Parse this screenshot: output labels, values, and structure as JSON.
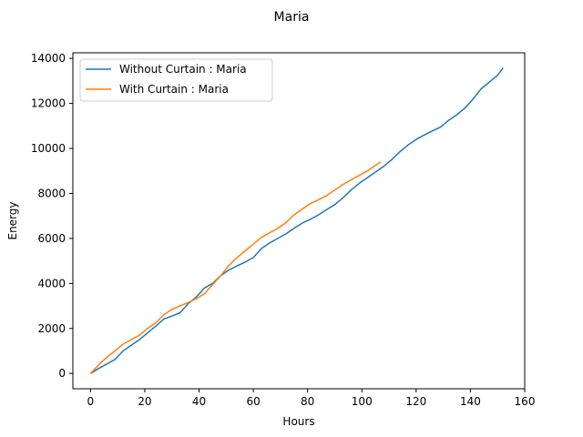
{
  "chart_data": {
    "type": "line",
    "title": "Maria",
    "xlabel": "Hours",
    "ylabel": "Energy",
    "xlim": [
      -6.5,
      160
    ],
    "ylim": [
      -680,
      14250
    ],
    "xticks": [
      0,
      20,
      40,
      60,
      80,
      100,
      120,
      140,
      160
    ],
    "yticks": [
      0,
      2000,
      4000,
      6000,
      8000,
      10000,
      12000,
      14000
    ],
    "grid": false,
    "legend_position": "upper-left",
    "series": [
      {
        "name": "Without Curtain : Maria",
        "color": "#1f77b4",
        "points": [
          [
            0,
            0
          ],
          [
            3,
            220
          ],
          [
            6,
            420
          ],
          [
            9,
            620
          ],
          [
            12,
            1000
          ],
          [
            15,
            1250
          ],
          [
            18,
            1500
          ],
          [
            21,
            1800
          ],
          [
            24,
            2100
          ],
          [
            27,
            2420
          ],
          [
            30,
            2550
          ],
          [
            33,
            2700
          ],
          [
            36,
            3100
          ],
          [
            39,
            3400
          ],
          [
            42,
            3800
          ],
          [
            45,
            4000
          ],
          [
            48,
            4350
          ],
          [
            51,
            4600
          ],
          [
            54,
            4780
          ],
          [
            57,
            4950
          ],
          [
            60,
            5150
          ],
          [
            63,
            5550
          ],
          [
            66,
            5800
          ],
          [
            69,
            6000
          ],
          [
            72,
            6200
          ],
          [
            75,
            6450
          ],
          [
            78,
            6680
          ],
          [
            81,
            6850
          ],
          [
            84,
            7050
          ],
          [
            87,
            7280
          ],
          [
            90,
            7500
          ],
          [
            93,
            7800
          ],
          [
            96,
            8150
          ],
          [
            99,
            8450
          ],
          [
            102,
            8700
          ],
          [
            105,
            8950
          ],
          [
            108,
            9200
          ],
          [
            111,
            9500
          ],
          [
            114,
            9850
          ],
          [
            117,
            10150
          ],
          [
            120,
            10400
          ],
          [
            123,
            10600
          ],
          [
            126,
            10780
          ],
          [
            129,
            10950
          ],
          [
            132,
            11250
          ],
          [
            135,
            11500
          ],
          [
            138,
            11800
          ],
          [
            141,
            12200
          ],
          [
            144,
            12650
          ],
          [
            147,
            12950
          ],
          [
            150,
            13250
          ],
          [
            152,
            13580
          ]
        ]
      },
      {
        "name": "With Curtain : Maria",
        "color": "#ff7f0e",
        "points": [
          [
            0,
            0
          ],
          [
            3,
            380
          ],
          [
            6,
            720
          ],
          [
            9,
            1000
          ],
          [
            12,
            1300
          ],
          [
            15,
            1500
          ],
          [
            18,
            1700
          ],
          [
            21,
            2000
          ],
          [
            24,
            2250
          ],
          [
            27,
            2600
          ],
          [
            30,
            2850
          ],
          [
            33,
            3000
          ],
          [
            36,
            3150
          ],
          [
            39,
            3320
          ],
          [
            42,
            3550
          ],
          [
            45,
            3950
          ],
          [
            48,
            4350
          ],
          [
            51,
            4800
          ],
          [
            54,
            5150
          ],
          [
            57,
            5450
          ],
          [
            60,
            5750
          ],
          [
            63,
            6050
          ],
          [
            66,
            6250
          ],
          [
            69,
            6450
          ],
          [
            72,
            6700
          ],
          [
            75,
            7050
          ],
          [
            78,
            7300
          ],
          [
            81,
            7550
          ],
          [
            84,
            7720
          ],
          [
            87,
            7900
          ],
          [
            90,
            8150
          ],
          [
            93,
            8400
          ],
          [
            96,
            8600
          ],
          [
            99,
            8800
          ],
          [
            102,
            9000
          ],
          [
            105,
            9250
          ],
          [
            107,
            9400
          ]
        ]
      }
    ]
  }
}
